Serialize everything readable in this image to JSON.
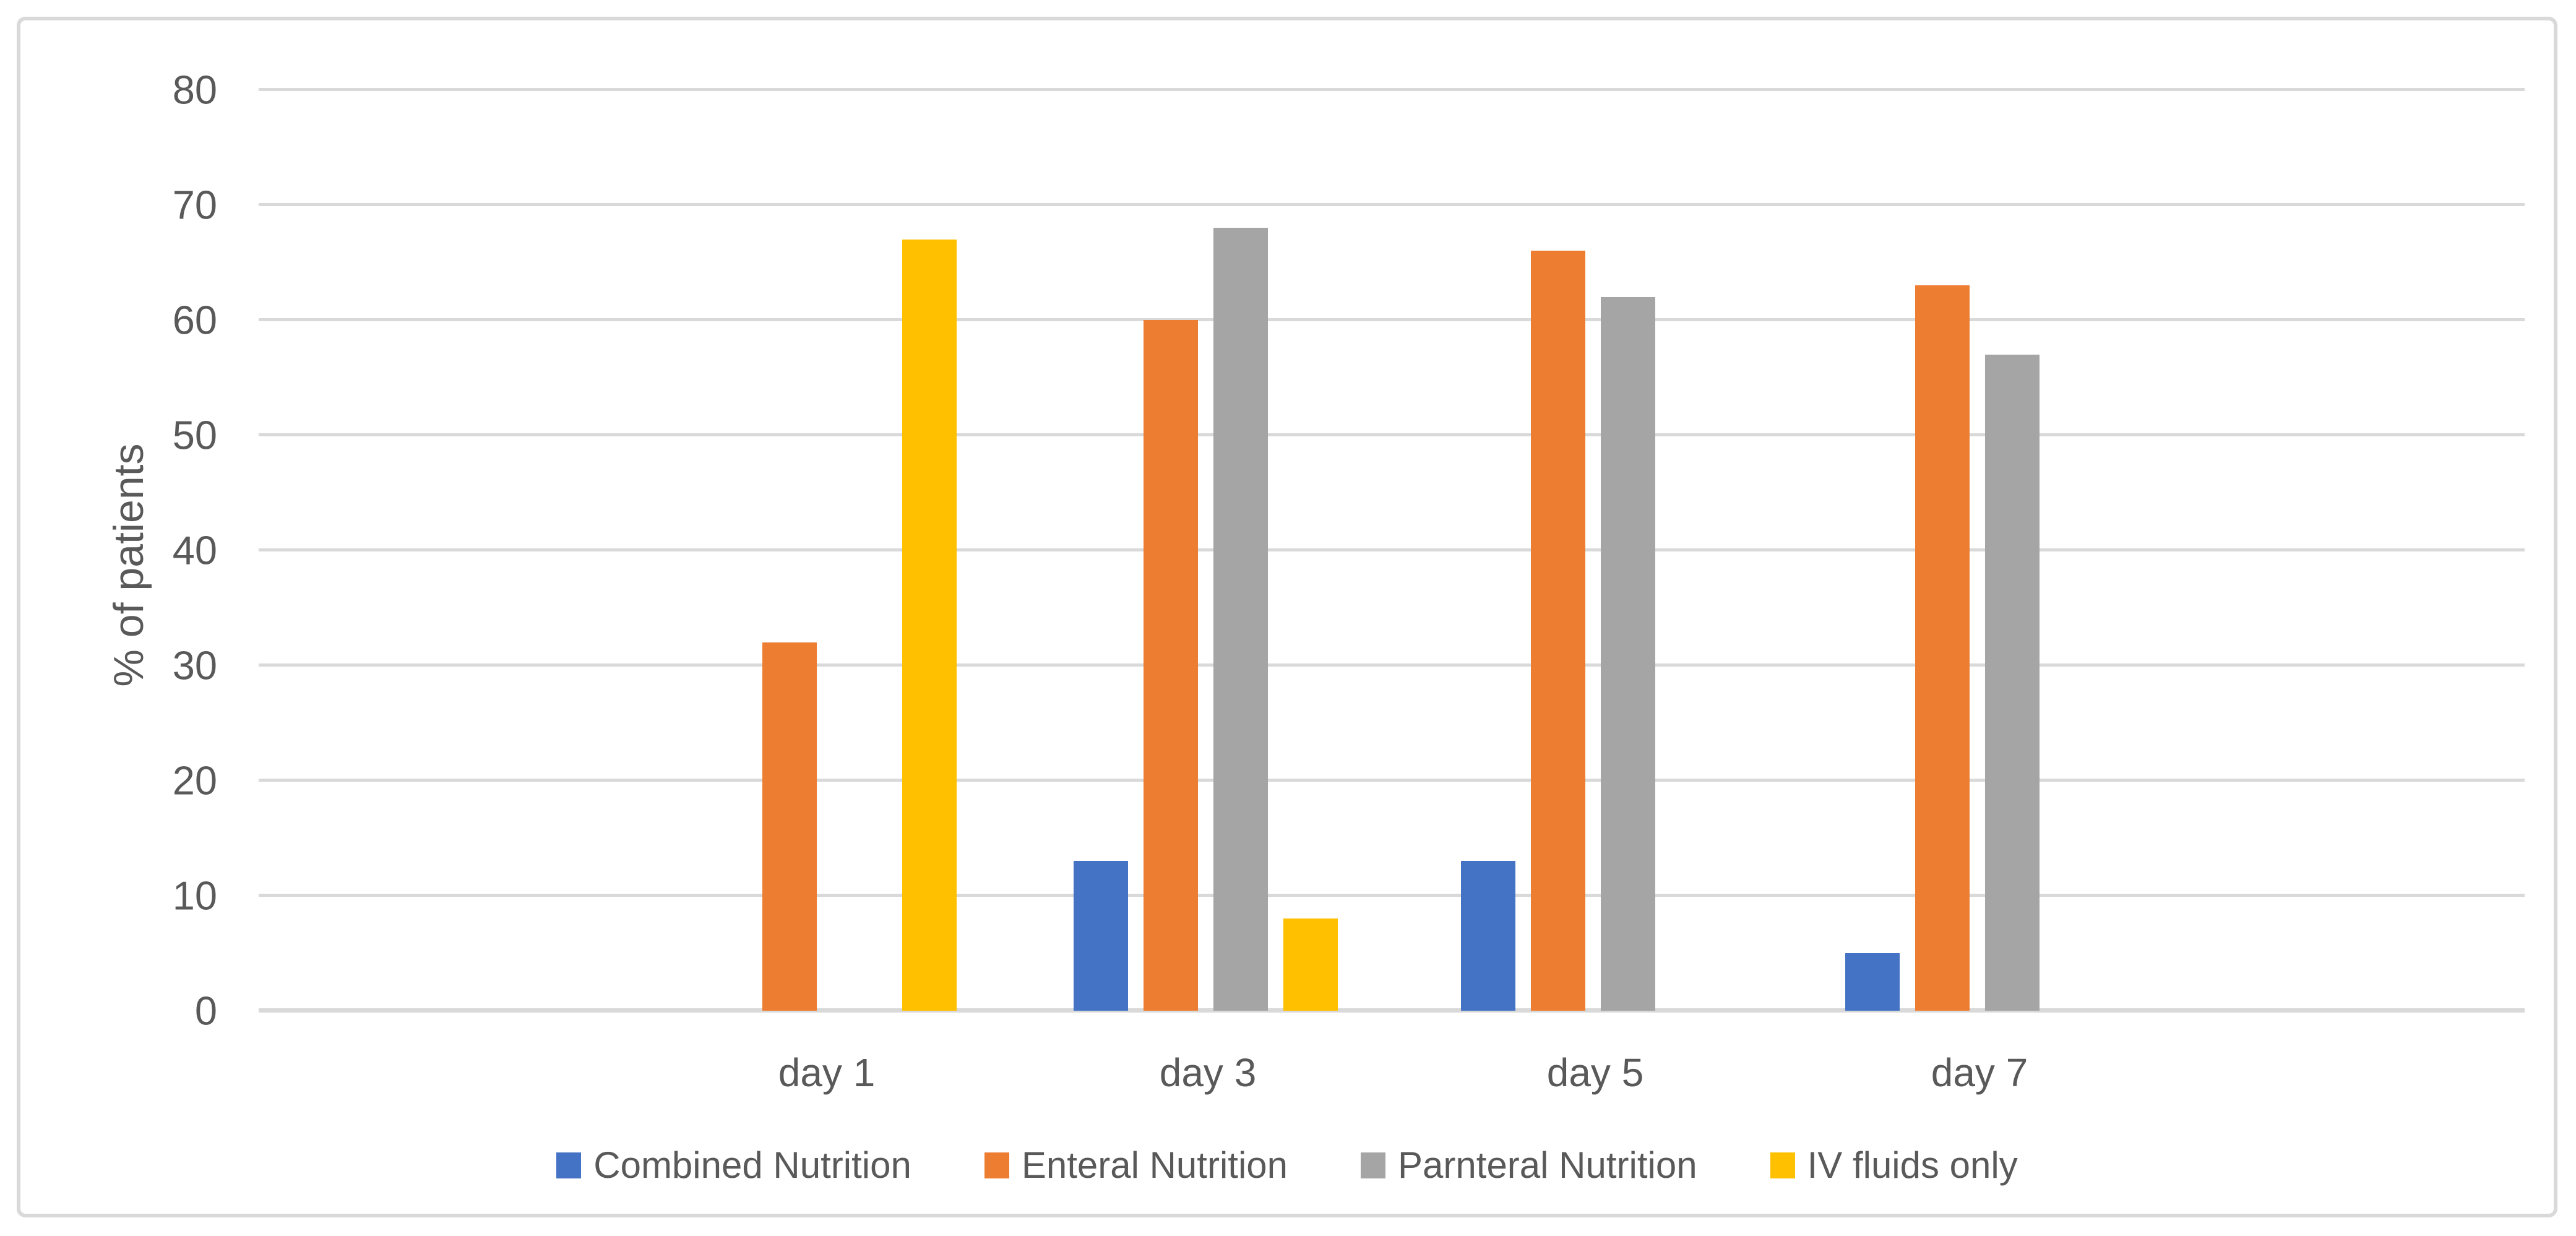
{
  "chart_data": {
    "type": "bar",
    "title": "",
    "xlabel": "",
    "ylabel": "% of patients",
    "categories": [
      "day 1",
      "day 3",
      "day 5",
      "day 7"
    ],
    "series": [
      {
        "name": "Combined Nutrition",
        "color": "#4472C4",
        "values": [
          0,
          13,
          13,
          5
        ]
      },
      {
        "name": "Enteral Nutrition",
        "color": "#ED7D31",
        "values": [
          32,
          60,
          66,
          63
        ]
      },
      {
        "name": "Parnteral Nutrition",
        "color": "#A5A5A5",
        "values": [
          0,
          68,
          62,
          57
        ]
      },
      {
        "name": "IV fluids only",
        "color": "#FFC000",
        "values": [
          67,
          8,
          0,
          0
        ]
      }
    ],
    "ylim": [
      0,
      80
    ],
    "yticks": [
      0,
      10,
      20,
      30,
      40,
      50,
      60,
      70,
      80
    ],
    "grid": true,
    "gridline_color": "#D9D9D9",
    "text_color": "#595959",
    "legend_position": "bottom"
  }
}
